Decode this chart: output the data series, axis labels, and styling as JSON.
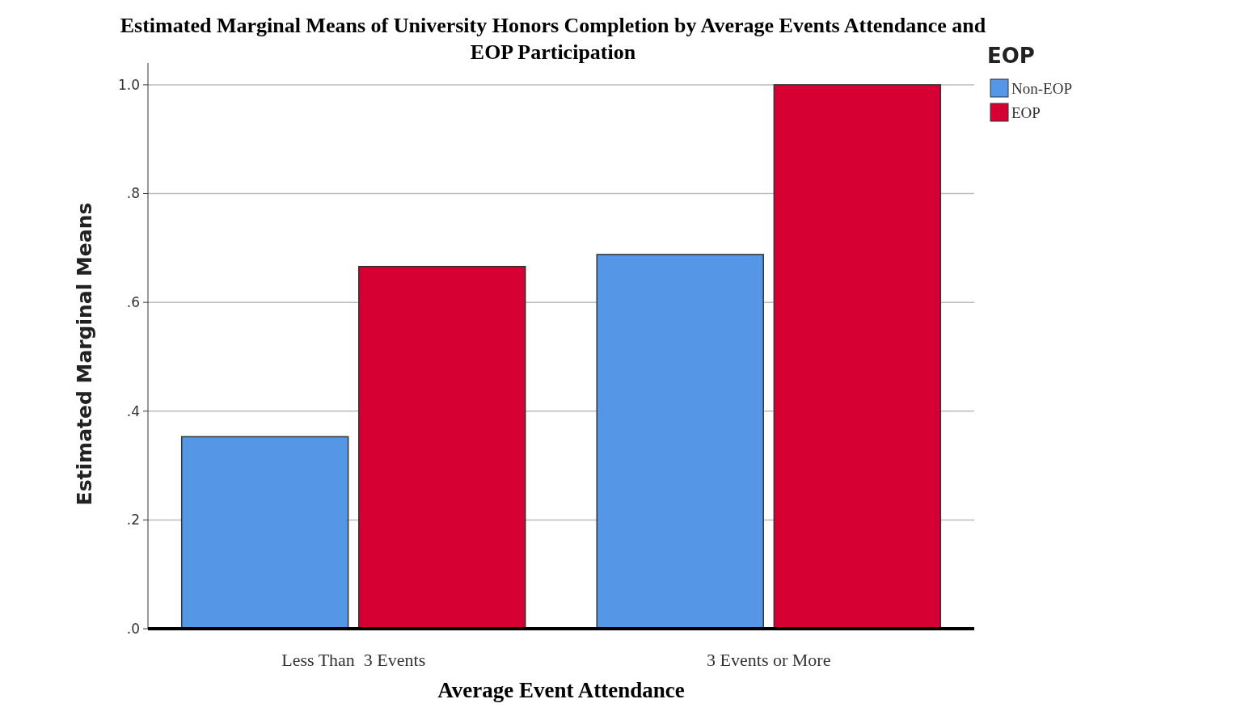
{
  "chart_data": {
    "type": "bar",
    "title": "Estimated Marginal Means of University Honors Completion by Average Events Attendance and EOP Participation",
    "xlabel": "Average Event Attendance",
    "ylabel": "Estimated Marginal Means",
    "legend_title": "EOP",
    "categories": [
      "Less Than  3 Events",
      "3 Events or More"
    ],
    "series": [
      {
        "name": "Non-EOP",
        "color": "#5596e6",
        "values": [
          0.353,
          0.688
        ]
      },
      {
        "name": "EOP",
        "color": "#d60032",
        "values": [
          0.666,
          1.0
        ]
      }
    ],
    "ylim": [
      0,
      1.04
    ],
    "yticks": [
      {
        "value": 0,
        "label": ".0"
      },
      {
        "value": 0.2,
        "label": ".2"
      },
      {
        "value": 0.4,
        "label": ".4"
      },
      {
        "value": 0.6,
        "label": ".6"
      },
      {
        "value": 0.8,
        "label": ".8"
      },
      {
        "value": 1,
        "label": "1.0"
      }
    ],
    "grid": "y",
    "legend": "top right"
  }
}
